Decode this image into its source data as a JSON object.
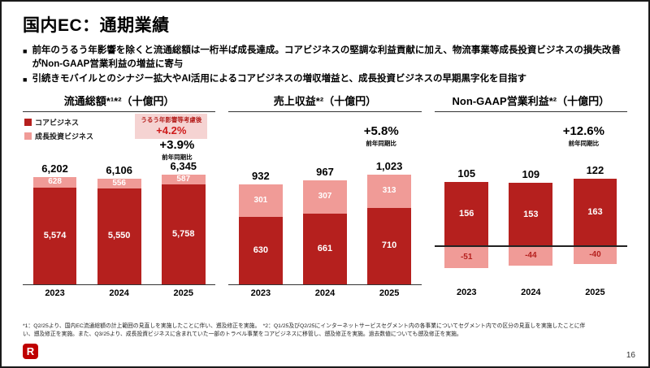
{
  "slide": {
    "title": "国内EC：通期業績",
    "bullet_marker": "■",
    "page_number": "16",
    "logo_text": "R"
  },
  "bullets": [
    {
      "text": "前年のうるう年影響を除くと流通総額は一桁半ば成長達成。コアビジネスの堅調な利益貢献に加え、物流事業等成長投資ビジネスの損失改善がNon-GAAP営業利益の増益に寄与"
    },
    {
      "text": "引続きモバイルとのシナジー拡大やAI活用によるコアビジネスの増収増益と、成長投資ビジネスの早期黒字化を目指す"
    }
  ],
  "legend": {
    "core_label": "コアビジネス",
    "growth_label": "成長投資ビジネス"
  },
  "colors": {
    "core": "#B5201E",
    "growth": "#F09B97",
    "badge_bg": "#F5D3D2",
    "accent_red": "#CE1A1A",
    "logo_red": "#BF0000"
  },
  "footnote": "*1：Q2/25より、国内EC流通総額の計上範囲の見直しを実施したことに伴い、遡及修正を実施。　*2：Q1/25及びQ2/25にインターネットサービスセグメント内の各事業についてセグメント内での区分の見直しを実施したことに伴い、遡及修正を実施。また、Q3/25より、成長投資ビジネスに含まれていた一部のトラベル事業をコアビジネスに移管し、遡及修正を実施。過去数値についても遡及修正を実施。",
  "chart_data": [
    {
      "type": "bar",
      "title": "流通総額*¹*²（十億円）",
      "categories": [
        "2023",
        "2024",
        "2025"
      ],
      "series": [
        {
          "name": "コアビジネス",
          "values": [
            5574,
            5550,
            5758
          ],
          "labels": [
            "5,574",
            "5,550",
            "5,758"
          ]
        },
        {
          "name": "成長投資ビジネス",
          "values": [
            628,
            556,
            587
          ],
          "labels": [
            "628",
            "556",
            "587"
          ]
        }
      ],
      "totals": [
        6202,
        6106,
        6345
      ],
      "total_labels": [
        "6,202",
        "6,106",
        "6,345"
      ],
      "yoy": "+3.9%",
      "yoy_sub": "前年同期比",
      "badge_line1": "うるう年影響等考慮後",
      "badge_line2": "+4.2%",
      "has_negative": false,
      "ylim": [
        0,
        6345
      ],
      "legend_position": "top-left"
    },
    {
      "type": "bar",
      "title": "売上収益*²（十億円）",
      "categories": [
        "2023",
        "2024",
        "2025"
      ],
      "series": [
        {
          "name": "コアビジネス",
          "values": [
            630,
            661,
            710
          ],
          "labels": [
            "630",
            "661",
            "710"
          ]
        },
        {
          "name": "成長投資ビジネス",
          "values": [
            301,
            307,
            313
          ],
          "labels": [
            "301",
            "307",
            "313"
          ]
        }
      ],
      "totals": [
        932,
        967,
        1023
      ],
      "total_labels": [
        "932",
        "967",
        "1,023"
      ],
      "yoy": "+5.8%",
      "yoy_sub": "前年同期比",
      "has_negative": false,
      "ylim": [
        0,
        1023
      ]
    },
    {
      "type": "bar",
      "title": "Non-GAAP営業利益*²（十億円）",
      "categories": [
        "2023",
        "2024",
        "2025"
      ],
      "series": [
        {
          "name": "コアビジネス",
          "values": [
            156,
            153,
            163
          ],
          "labels": [
            "156",
            "153",
            "163"
          ]
        },
        {
          "name": "成長投資ビジネス",
          "values": [
            -51,
            -44,
            -40
          ],
          "labels": [
            "-51",
            "-44",
            "-40"
          ]
        }
      ],
      "totals": [
        105,
        109,
        122
      ],
      "total_labels": [
        "105",
        "109",
        "122"
      ],
      "yoy": "+12.6%",
      "yoy_sub": "前年同期比",
      "has_negative": true,
      "ylim": [
        -60,
        170
      ]
    }
  ]
}
